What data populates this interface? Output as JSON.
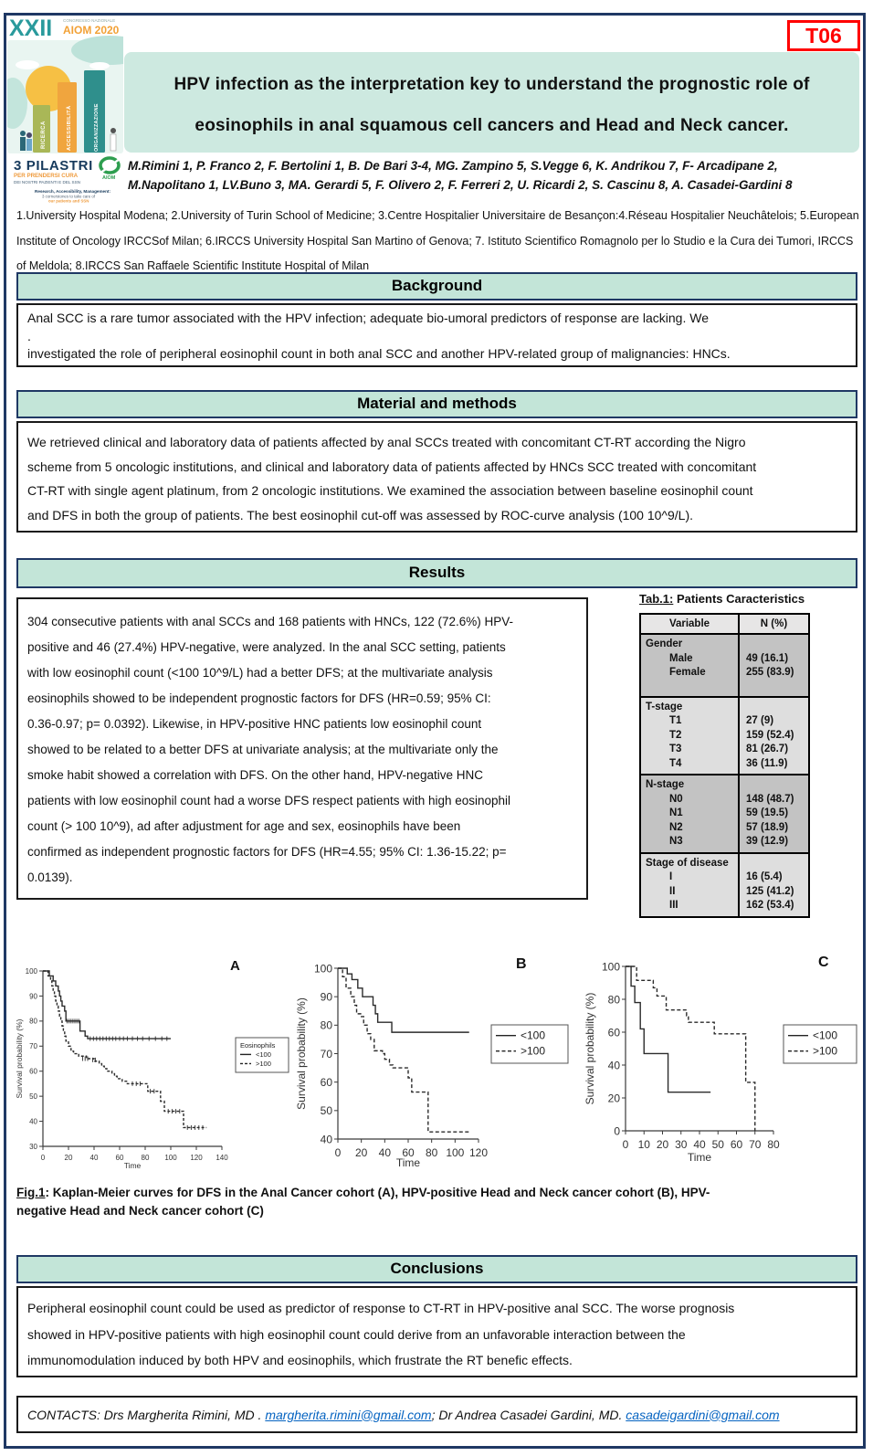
{
  "poster": {
    "tag": "T06",
    "congress": {
      "numeral": "XXII",
      "small": "CONGRESSO NAZIONALE",
      "name": "AIOM 2020",
      "pillar1": "RICERCA",
      "pillar2": "ACCESSIBILITÀ",
      "pillar3": "ORGANIZZAZIONE",
      "slogan_title": "3 PILASTRI",
      "slogan_sub": "PER PRENDERSI CURA",
      "slogan_small": "DEI NOSTRI PAZIENTI E DEL SSN",
      "footnote1": "Research, Accessibility, Management:",
      "footnote2": "3 cornerstones to take care of",
      "footnote3": "our patients and SSN",
      "mini_logo_text": "AIOM"
    },
    "title_line1": "HPV infection as the interpretation key to understand the prognostic role of",
    "title_line2": "eosinophils in anal squamous cell cancers and Head and Neck cancer.",
    "authors_line1": "M.Rimini 1, P. Franco 2, F. Bertolini 1, B. De Bari 3-4, MG. Zampino 5, S.Vegge 6, K. Andrikou 7, F- Arcadipane 2,",
    "authors_line2": "M.Napolitano 1, LV.Buno 3, MA. Gerardi 5, F. Olivero 2, F. Ferreri 2, U. Ricardi 2, S. Cascinu 8, A. Casadei-Gardini 8",
    "affiliations": [
      "1.University Hospital Modena; 2.University of Turin School of Medicine; 3.Centre Hospitalier Universitaire de Besançon:4.Réseau Hospitalier Neuchâtelois; 5.European",
      "Institute of Oncology IRCCSof Milan; 6.IRCCS University Hospital San Martino of Genova; 7. Istituto Scientifico Romagnolo per lo Studio e la Cura dei Tumori, IRCCS",
      "of Meldola; 8.IRCCS San Raffaele Scientific Institute Hospital of Milan"
    ]
  },
  "sections": {
    "background": {
      "title": "Background",
      "lines": [
        "Anal SCC is a rare tumor associated with the HPV infection; adequate bio-umoral predictors of response are lacking. We",
        ".",
        "investigated the role of peripheral eosinophil count in both anal SCC and another HPV-related group of malignancies: HNCs."
      ]
    },
    "methods": {
      "title": "Material and methods",
      "lines": [
        "We retrieved clinical and laboratory data of patients affected by anal SCCs treated with concomitant CT-RT according the Nigro",
        "scheme from 5 oncologic institutions, and clinical and laboratory data of patients affected by HNCs SCC treated with concomitant",
        "CT-RT with single agent platinum, from 2 oncologic institutions. We examined the association between baseline eosinophil count",
        "and DFS in both the group of patients. The best eosinophil cut-off was assessed by ROC-curve analysis (100 10^9/L)."
      ]
    },
    "results": {
      "title": "Results",
      "lines": [
        "304 consecutive patients with anal SCCs and 168 patients with HNCs, 122 (72.6%) HPV-",
        "positive and 46 (27.4%) HPV-negative, were analyzed. In the anal SCC setting, patients",
        "with low eosinophil count (<100 10^9/L) had a better DFS; at the multivariate analysis",
        "eosinophils showed to be independent prognostic factors for DFS (HR=0.59; 95% CI:",
        "0.36-0.97; p= 0.0392). Likewise, in HPV-positive HNC patients low eosinophil count",
        "showed to be related to a better DFS at univariate analysis; at the multivariate only the",
        "smoke habit showed a correlation with DFS. On the other hand, HPV-negative HNC",
        "patients with low eosinophil count had a worse DFS respect patients with high eosinophil",
        "count (> 100 10^9), ad after adjustment for age and sex, eosinophils have been",
        "confirmed as independent prognostic factors for DFS (HR=4.55; 95% CI: 1.36-15.22; p=",
        "0.0139)."
      ]
    },
    "conclusions": {
      "title": "Conclusions",
      "lines": [
        "Peripheral eosinophil count could be used as predictor of response to CT-RT in HPV-positive anal SCC.  The worse prognosis",
        "showed in HPV-positive patients with high eosinophil count could derive from an unfavorable interaction between the",
        "immunomodulation induced by both HPV and eosinophils, which frustrate the RT benefic effects."
      ]
    }
  },
  "table1": {
    "caption_label": "Tab.1:",
    "caption_text": " Patients Caracteristics",
    "columns": [
      "Variable",
      "N (%)"
    ],
    "groups": [
      {
        "label": "Gender",
        "shade": "dark",
        "pad_bottom": true,
        "rows": [
          [
            "Male",
            "49 (16.1)"
          ],
          [
            "Female",
            "255 (83.9)"
          ]
        ]
      },
      {
        "label": "T-stage",
        "shade": "light",
        "pad_bottom": false,
        "rows": [
          [
            "T1",
            "27 (9)"
          ],
          [
            "T2",
            "159 (52.4)"
          ],
          [
            "T3",
            "81 (26.7)"
          ],
          [
            "T4",
            "36 (11.9)"
          ]
        ]
      },
      {
        "label": "N-stage",
        "shade": "dark",
        "pad_bottom": false,
        "rows": [
          [
            "N0",
            "148 (48.7)"
          ],
          [
            "N1",
            "59 (19.5)"
          ],
          [
            "N2",
            "57 (18.9)"
          ],
          [
            "N3",
            "39 (12.9)"
          ]
        ]
      },
      {
        "label": "Stage of disease",
        "shade": "light",
        "pad_bottom": false,
        "rows": [
          [
            "I",
            "16 (5.4)"
          ],
          [
            "II",
            "125 (41.2)"
          ],
          [
            "III",
            "162 (53.4)"
          ]
        ]
      }
    ]
  },
  "figure": {
    "label": "Fig.1",
    "line1": ": Kaplan-Meier curves for DFS in the Anal Cancer cohort (A), HPV-positive Head and Neck cancer cohort (B), HPV-",
    "line2": "negative Head and Neck cancer cohort (C)"
  },
  "chart_data": [
    {
      "id": "A",
      "type": "line",
      "subtype": "kaplan-meier",
      "panel_label": "A",
      "xlabel": "Time",
      "ylabel": "Survival probability (%)",
      "xlim": [
        0,
        140
      ],
      "ylim": [
        30,
        100
      ],
      "xticks": [
        0,
        20,
        40,
        60,
        80,
        100,
        120,
        140
      ],
      "yticks": [
        30,
        40,
        50,
        60,
        70,
        80,
        90,
        100
      ],
      "legend_title": "Eosinophils",
      "legend_position": "right-middle",
      "grid": false,
      "series": [
        {
          "name": "<100",
          "style": "solid",
          "points": [
            [
              0,
              100
            ],
            [
              5,
              98
            ],
            [
              8,
              96
            ],
            [
              10,
              94
            ],
            [
              12,
              92
            ],
            [
              13,
              90
            ],
            [
              14,
              88
            ],
            [
              15,
              86
            ],
            [
              17,
              84
            ],
            [
              18,
              80
            ],
            [
              29,
              76
            ],
            [
              33,
              74
            ],
            [
              35,
              73
            ],
            [
              100,
              73
            ]
          ],
          "censors": [
            [
              19,
              80
            ],
            [
              20.5,
              80
            ],
            [
              22,
              80
            ],
            [
              23.5,
              80
            ],
            [
              25,
              80
            ],
            [
              26.5,
              80
            ],
            [
              28,
              80
            ],
            [
              37,
              73
            ],
            [
              39.5,
              73
            ],
            [
              42,
              73
            ],
            [
              44.5,
              73
            ],
            [
              47,
              73
            ],
            [
              49.5,
              73
            ],
            [
              52,
              73
            ],
            [
              54.5,
              73
            ],
            [
              57,
              73
            ],
            [
              60,
              73
            ],
            [
              63,
              73
            ],
            [
              66,
              73
            ],
            [
              70,
              73
            ],
            [
              74,
              73
            ],
            [
              78,
              73
            ],
            [
              83,
              73
            ],
            [
              88,
              73
            ],
            [
              93,
              73
            ],
            [
              97,
              73
            ]
          ]
        },
        {
          "name": ">100",
          "style": "dashed",
          "points": [
            [
              0,
              100
            ],
            [
              4,
              98
            ],
            [
              6,
              96
            ],
            [
              7,
              94
            ],
            [
              8,
              92
            ],
            [
              9,
              90
            ],
            [
              10,
              88
            ],
            [
              11,
              86
            ],
            [
              12,
              84
            ],
            [
              13,
              82
            ],
            [
              14,
              80
            ],
            [
              15,
              78
            ],
            [
              16,
              76
            ],
            [
              17,
              74
            ],
            [
              18,
              72
            ],
            [
              20,
              70
            ],
            [
              22,
              68
            ],
            [
              24,
              67
            ],
            [
              28,
              66
            ],
            [
              34,
              65
            ],
            [
              40,
              64
            ],
            [
              44,
              63
            ],
            [
              46,
              62
            ],
            [
              48,
              61
            ],
            [
              50,
              60
            ],
            [
              54,
              59
            ],
            [
              56,
              58
            ],
            [
              58,
              57
            ],
            [
              62,
              56
            ],
            [
              66,
              55
            ],
            [
              82,
              52
            ],
            [
              92,
              48
            ],
            [
              95,
              44
            ],
            [
              110,
              37.5
            ],
            [
              128,
              37.5
            ]
          ],
          "censors": [
            [
              31,
              65
            ],
            [
              33,
              65
            ],
            [
              35,
              65
            ],
            [
              39,
              64.5
            ],
            [
              41,
              64.5
            ],
            [
              70,
              55
            ],
            [
              73,
              55
            ],
            [
              76,
              55
            ],
            [
              84,
              52
            ],
            [
              87,
              52
            ],
            [
              98,
              44
            ],
            [
              101,
              44
            ],
            [
              104,
              44
            ],
            [
              107,
              44
            ],
            [
              113,
              37.5
            ],
            [
              116,
              37.5
            ],
            [
              119,
              37.5
            ],
            [
              122,
              37.5
            ],
            [
              125,
              37.5
            ]
          ]
        }
      ]
    },
    {
      "id": "B",
      "type": "line",
      "subtype": "kaplan-meier",
      "panel_label": "B",
      "xlabel": "Time",
      "ylabel": "Survival probability (%)",
      "xlim": [
        0,
        120
      ],
      "ylim": [
        40,
        100
      ],
      "xticks": [
        0,
        20,
        40,
        60,
        80,
        100,
        120
      ],
      "yticks": [
        40,
        50,
        60,
        70,
        80,
        90,
        100
      ],
      "legend_title": "",
      "legend_position": "right-middle",
      "grid": false,
      "series": [
        {
          "name": "<100",
          "style": "solid",
          "points": [
            [
              0,
              100
            ],
            [
              8,
              98
            ],
            [
              12,
              96
            ],
            [
              17,
              93
            ],
            [
              21,
              90
            ],
            [
              30,
              87
            ],
            [
              32,
              84
            ],
            [
              34,
              81
            ],
            [
              46,
              77.5
            ],
            [
              112,
              77.5
            ]
          ],
          "censors": []
        },
        {
          "name": ">100",
          "style": "dashed",
          "points": [
            [
              0,
              100
            ],
            [
              4,
              97
            ],
            [
              7,
              93
            ],
            [
              11,
              90
            ],
            [
              14,
              87
            ],
            [
              16,
              84
            ],
            [
              20,
              83
            ],
            [
              22,
              80
            ],
            [
              25,
              77
            ],
            [
              28,
              75
            ],
            [
              31,
              71
            ],
            [
              38,
              70
            ],
            [
              40,
              68
            ],
            [
              44,
              66
            ],
            [
              47,
              65
            ],
            [
              60,
              61.5
            ],
            [
              63,
              56.5
            ],
            [
              77,
              42.5
            ],
            [
              112,
              42.5
            ]
          ],
          "censors": []
        }
      ]
    },
    {
      "id": "C",
      "type": "line",
      "subtype": "kaplan-meier",
      "panel_label": "C",
      "xlabel": "Time",
      "ylabel": "Survival probability (%)",
      "xlim": [
        0,
        80
      ],
      "ylim": [
        0,
        100
      ],
      "xticks": [
        0,
        10,
        20,
        30,
        40,
        50,
        60,
        70,
        80
      ],
      "yticks": [
        0,
        20,
        40,
        60,
        80,
        100
      ],
      "legend_title": "",
      "legend_position": "right-middle",
      "grid": false,
      "series": [
        {
          "name": "<100",
          "style": "solid",
          "points": [
            [
              0,
              100
            ],
            [
              3,
              88
            ],
            [
              5,
              78
            ],
            [
              8,
              62
            ],
            [
              10,
              47
            ],
            [
              23,
              23.5
            ],
            [
              46,
              23.5
            ]
          ],
          "censors": []
        },
        {
          "name": ">100",
          "style": "dashed",
          "points": [
            [
              0,
              100
            ],
            [
              6,
              91.5
            ],
            [
              15,
              87
            ],
            [
              17,
              82
            ],
            [
              22,
              73.5
            ],
            [
              33,
              70
            ],
            [
              34,
              66
            ],
            [
              48,
              59
            ],
            [
              65,
              29.5
            ],
            [
              70,
              0
            ]
          ],
          "censors": []
        }
      ]
    }
  ],
  "contacts": {
    "prefix": "CONTACTS: Drs Margherita Rimini, MD . ",
    "email1": "margherita.rimini@gmail.com",
    "mid": "; Dr Andrea Casadei Gardini, MD. ",
    "email2": "casadeigardini@gmail.com"
  },
  "colors": {
    "navy_frame": "#1f3864",
    "mint_banner": "#cde9e0",
    "mint_header": "#c3e5d8",
    "tag_red": "#ff0000",
    "link_blue": "#0563c1",
    "logo_teal": "#2a9a9c",
    "logo_orange": "#f2a136",
    "logo_green_pillar": "#a9b757",
    "logo_teal_pillar": "#2f8f8c",
    "table_dark_band": "#c3c3c3",
    "table_light_band": "#dedede"
  }
}
